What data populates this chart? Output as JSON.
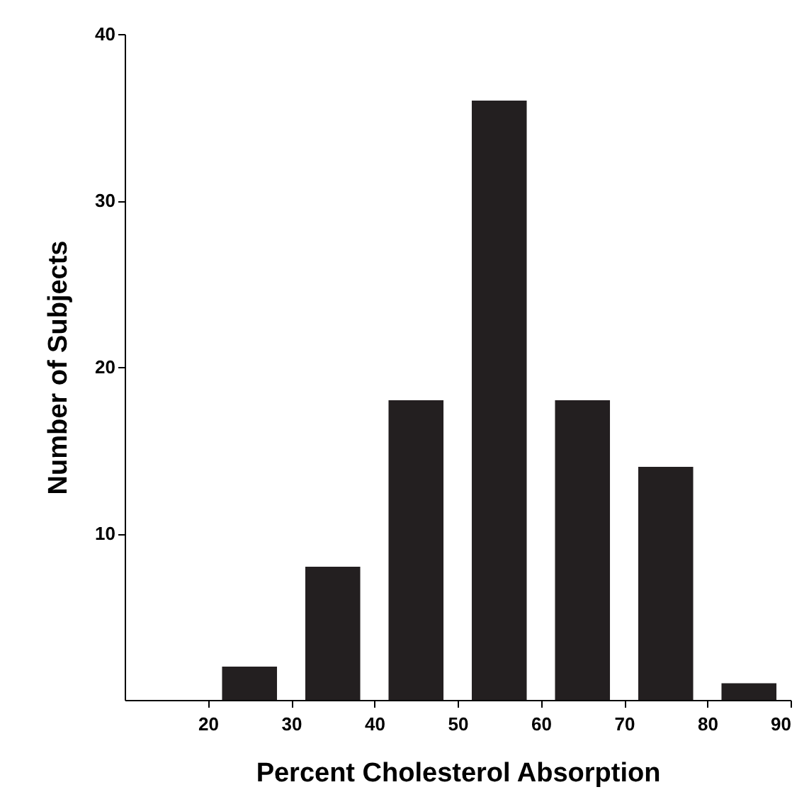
{
  "chart_data": {
    "type": "bar",
    "xlabel": "Percent Cholesterol Absorption",
    "ylabel": "Number of Subjects",
    "x": [
      25,
      35,
      45,
      55,
      65,
      75,
      85
    ],
    "values": [
      2,
      8,
      18,
      36,
      18,
      14,
      1
    ],
    "color": "#231f20",
    "xlim": [
      10,
      90
    ],
    "xticks": [
      20,
      30,
      40,
      50,
      60,
      70,
      80,
      90
    ],
    "ylim": [
      0,
      40
    ],
    "yticks": [
      10,
      20,
      30,
      40
    ],
    "grid": false
  }
}
